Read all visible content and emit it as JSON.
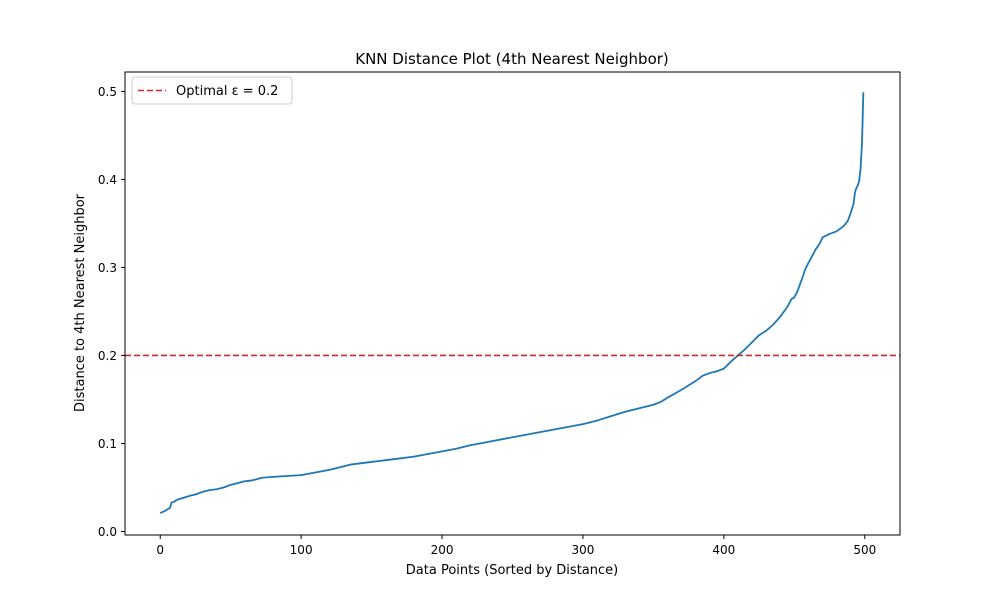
{
  "chart_data": {
    "type": "line",
    "title": "KNN Distance Plot (4th Nearest Neighbor)",
    "xlabel": "Data Points (Sorted by Distance)",
    "ylabel": "Distance to 4th Nearest Neighbor",
    "xlim": [
      -25,
      525
    ],
    "ylim": [
      -0.004,
      0.522
    ],
    "xticks": [
      0,
      100,
      200,
      300,
      400,
      500
    ],
    "yticks": [
      0.0,
      0.1,
      0.2,
      0.3,
      0.4,
      0.5
    ],
    "xtick_labels": [
      "0",
      "100",
      "200",
      "300",
      "400",
      "500"
    ],
    "ytick_labels": [
      "0.0",
      "0.1",
      "0.2",
      "0.3",
      "0.4",
      "0.5"
    ],
    "grid": false,
    "legend_position": "upper-left",
    "series": [
      {
        "color": "#1f77b4",
        "x": [
          0,
          3,
          5,
          7,
          8,
          10,
          12,
          14,
          16,
          18,
          20,
          22,
          25,
          30,
          35,
          40,
          45,
          50,
          55,
          60,
          65,
          70,
          72,
          80,
          90,
          100,
          110,
          120,
          130,
          135,
          140,
          150,
          160,
          170,
          180,
          190,
          200,
          210,
          220,
          230,
          240,
          250,
          260,
          270,
          280,
          290,
          300,
          305,
          310,
          320,
          330,
          340,
          350,
          355,
          360,
          370,
          375,
          380,
          385,
          390,
          395,
          400,
          405,
          410,
          415,
          420,
          425,
          430,
          435,
          440,
          445,
          448,
          450,
          452,
          455,
          458,
          460,
          462,
          465,
          468,
          470,
          475,
          480,
          485,
          488,
          490,
          492,
          493,
          494,
          495,
          496,
          497,
          498,
          499
        ],
        "y": [
          0.021,
          0.023,
          0.025,
          0.027,
          0.033,
          0.034,
          0.036,
          0.037,
          0.038,
          0.039,
          0.04,
          0.041,
          0.042,
          0.045,
          0.047,
          0.048,
          0.05,
          0.053,
          0.055,
          0.057,
          0.058,
          0.06,
          0.061,
          0.062,
          0.063,
          0.064,
          0.067,
          0.07,
          0.074,
          0.076,
          0.077,
          0.079,
          0.081,
          0.083,
          0.085,
          0.088,
          0.091,
          0.094,
          0.098,
          0.101,
          0.104,
          0.107,
          0.11,
          0.113,
          0.116,
          0.119,
          0.122,
          0.124,
          0.126,
          0.131,
          0.136,
          0.14,
          0.144,
          0.147,
          0.152,
          0.161,
          0.166,
          0.171,
          0.177,
          0.18,
          0.182,
          0.185,
          0.193,
          0.2,
          0.207,
          0.215,
          0.223,
          0.228,
          0.235,
          0.244,
          0.255,
          0.264,
          0.266,
          0.272,
          0.285,
          0.299,
          0.305,
          0.311,
          0.32,
          0.327,
          0.334,
          0.338,
          0.341,
          0.347,
          0.353,
          0.362,
          0.372,
          0.385,
          0.39,
          0.393,
          0.398,
          0.412,
          0.44,
          0.499
        ]
      }
    ],
    "hlines": [
      {
        "y": 0.2,
        "color": "#d62728",
        "style": "dashed",
        "label": "Optimal ε = 0.2"
      }
    ]
  }
}
